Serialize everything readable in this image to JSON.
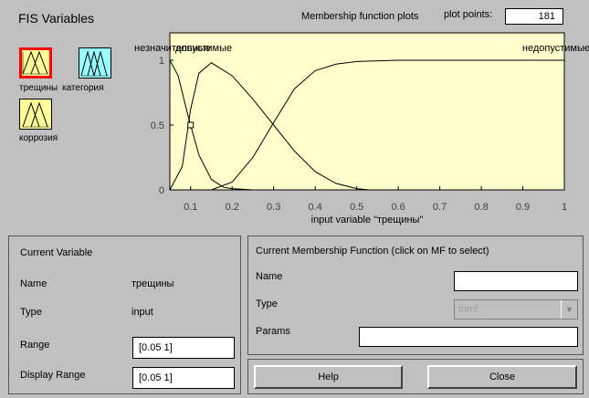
{
  "header": {
    "fis_title": "FIS Variables",
    "mf_plots_title": "Membership function plots",
    "plot_points_label": "plot points:",
    "plot_points_value": "181"
  },
  "variables": [
    {
      "name": "трещины",
      "icon": "triangle-mf-icon",
      "color": "#ffff99",
      "selected": true
    },
    {
      "name": "категория",
      "icon": "triangle-mf-icon",
      "color": "#99ffff",
      "selected": false
    },
    {
      "name": "коррозия",
      "icon": "triangle-mf-icon",
      "color": "#ffff99",
      "selected": false
    }
  ],
  "chart_data": {
    "type": "line",
    "xlabel": "input variable \"трещины\"",
    "xlim": [
      0.05,
      1
    ],
    "ylim": [
      0,
      1
    ],
    "x_ticks": [
      "0.1",
      "0.2",
      "0.3",
      "0.4",
      "0.5",
      "0.6",
      "0.7",
      "0.8",
      "0.9",
      "1"
    ],
    "y_ticks": [
      "0",
      "0.5",
      "1"
    ],
    "background": "#ffffcc",
    "mf_labels": [
      "незначительные",
      "допустимые",
      "недопустимые"
    ],
    "series": [
      {
        "name": "незначительные",
        "x": [
          0.05,
          0.07,
          0.09,
          0.1,
          0.12,
          0.15,
          0.18,
          0.2,
          0.25,
          0.3
        ],
        "y": [
          1,
          0.88,
          0.62,
          0.5,
          0.27,
          0.08,
          0.02,
          0.01,
          0,
          0
        ]
      },
      {
        "name": "допустимые",
        "x": [
          0.05,
          0.08,
          0.1,
          0.12,
          0.15,
          0.2,
          0.25,
          0.3,
          0.35,
          0.4,
          0.45,
          0.5,
          0.53
        ],
        "y": [
          0,
          0.18,
          0.62,
          0.9,
          0.98,
          0.88,
          0.7,
          0.5,
          0.3,
          0.14,
          0.05,
          0.01,
          0
        ]
      },
      {
        "name": "недопустимые",
        "x": [
          0.15,
          0.2,
          0.25,
          0.3,
          0.35,
          0.4,
          0.45,
          0.5,
          0.6,
          0.7,
          0.8,
          0.9,
          1
        ],
        "y": [
          0,
          0.06,
          0.25,
          0.52,
          0.78,
          0.92,
          0.97,
          0.99,
          1,
          1,
          1,
          1,
          1
        ]
      }
    ],
    "marker": {
      "x": 0.1,
      "y": 0.5
    }
  },
  "current_variable": {
    "title": "Current Variable",
    "name_label": "Name",
    "name_value": "трещины",
    "type_label": "Type",
    "type_value": "input",
    "range_label": "Range",
    "range_value": "[0.05 1]",
    "display_range_label": "Display Range",
    "display_range_value": "[0.05 1]"
  },
  "current_mf": {
    "title": "Current Membership Function (click on MF to select)",
    "name_label": "Name",
    "name_value": "",
    "type_label": "Type",
    "type_value": "trimf",
    "params_label": "Params",
    "params_value": ""
  },
  "buttons": {
    "help": "Help",
    "close": "Close"
  }
}
